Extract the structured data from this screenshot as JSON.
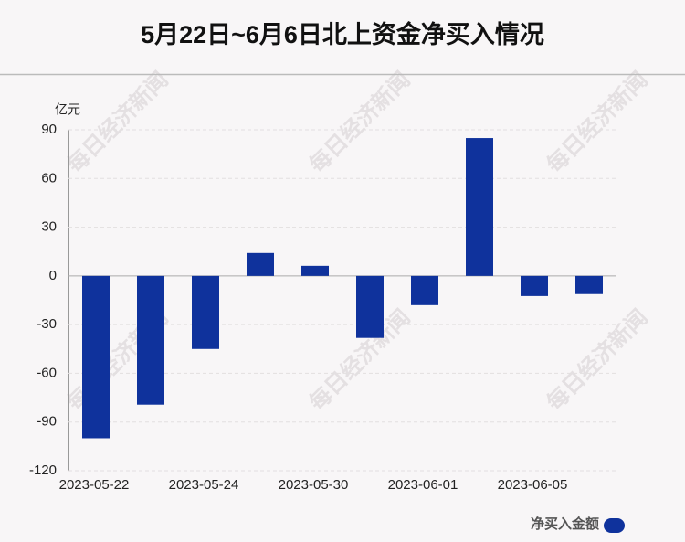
{
  "chart_data": {
    "type": "bar",
    "title": "5月22日~6月6日北上资金净买入情况",
    "y_label": "亿元",
    "watermark": "每日经济新闻",
    "categories": [
      "2023-05-22",
      null,
      "2023-05-24",
      null,
      "2023-05-30",
      null,
      "2023-06-01",
      null,
      "2023-06-05",
      null
    ],
    "series": [
      {
        "name": "净买入金额",
        "color": "#0f329c",
        "values": [
          -100,
          -79.3,
          -45,
          14.1,
          6.2,
          -38.2,
          -18,
          84.9,
          -12.4,
          -11.2
        ]
      }
    ],
    "ylim": [
      -120,
      90
    ],
    "yticks": [
      90,
      60,
      30,
      0,
      -30,
      -60,
      -90,
      -120
    ],
    "grid": true,
    "legend": "bottom-right"
  }
}
